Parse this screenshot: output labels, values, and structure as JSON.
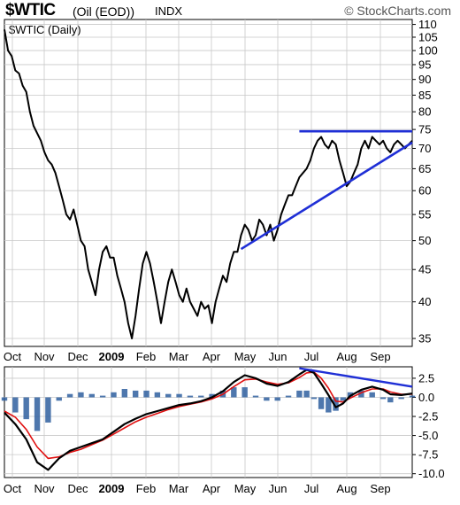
{
  "header": {
    "symbol": "$WTIC",
    "description": "(Oil (EOD))",
    "exchange": "INDX",
    "brand": "© StockCharts.com",
    "subtitle": "$WTIC (Daily)"
  },
  "colors": {
    "price": "#000000",
    "trendline": "#1f2fd6",
    "signal": "#e01010",
    "histogram": "#2f5f9f",
    "grid": "#c8c8c8"
  },
  "chart_data": [
    {
      "type": "line",
      "name": "price-panel",
      "scale": "log",
      "ylim": [
        34,
        112
      ],
      "y_ticks": [
        110,
        105,
        100,
        95,
        90,
        85,
        80,
        75,
        70,
        65,
        60,
        55,
        50,
        45,
        40,
        35
      ],
      "x_ticks": [
        "Oct",
        "Nov",
        "Dec",
        "2009",
        "Feb",
        "Mar",
        "Apr",
        "May",
        "Jun",
        "Jul",
        "Aug",
        "Sep"
      ],
      "series": [
        {
          "values": [
            [
              0,
              108
            ],
            [
              2,
              100
            ],
            [
              4,
              98
            ],
            [
              6,
              93
            ],
            [
              8,
              92
            ],
            [
              10,
              88
            ],
            [
              12,
              86
            ],
            [
              14,
              80
            ],
            [
              16,
              76
            ],
            [
              18,
              74
            ],
            [
              20,
              72
            ],
            [
              22,
              69
            ],
            [
              24,
              67
            ],
            [
              26,
              66
            ],
            [
              28,
              64
            ],
            [
              30,
              61
            ],
            [
              32,
              58
            ],
            [
              34,
              55
            ],
            [
              36,
              54
            ],
            [
              38,
              56
            ],
            [
              40,
              53
            ],
            [
              42,
              50
            ],
            [
              44,
              49
            ],
            [
              46,
              45
            ],
            [
              48,
              43
            ],
            [
              50,
              41
            ],
            [
              52,
              45
            ],
            [
              54,
              48
            ],
            [
              56,
              49
            ],
            [
              58,
              47
            ],
            [
              60,
              47
            ],
            [
              62,
              44
            ],
            [
              64,
              42
            ],
            [
              66,
              40
            ],
            [
              68,
              37
            ],
            [
              70,
              35
            ],
            [
              72,
              38
            ],
            [
              74,
              42
            ],
            [
              76,
              46
            ],
            [
              78,
              48
            ],
            [
              80,
              46
            ],
            [
              82,
              43
            ],
            [
              84,
              40
            ],
            [
              86,
              37
            ],
            [
              88,
              40
            ],
            [
              90,
              43
            ],
            [
              92,
              45
            ],
            [
              94,
              43
            ],
            [
              96,
              41
            ],
            [
              98,
              40
            ],
            [
              100,
              42
            ],
            [
              102,
              40
            ],
            [
              104,
              39
            ],
            [
              106,
              38
            ],
            [
              108,
              40
            ],
            [
              110,
              39
            ],
            [
              112,
              39.5
            ],
            [
              114,
              37
            ],
            [
              116,
              40
            ],
            [
              118,
              42
            ],
            [
              120,
              44
            ],
            [
              122,
              43
            ],
            [
              124,
              46
            ],
            [
              126,
              48
            ],
            [
              128,
              48
            ],
            [
              130,
              51
            ],
            [
              132,
              53
            ],
            [
              134,
              52
            ],
            [
              136,
              50
            ],
            [
              138,
              51
            ],
            [
              140,
              54
            ],
            [
              142,
              53
            ],
            [
              144,
              51
            ],
            [
              146,
              53
            ],
            [
              148,
              50
            ],
            [
              150,
              52
            ],
            [
              152,
              55
            ],
            [
              154,
              57
            ],
            [
              156,
              59
            ],
            [
              158,
              59
            ],
            [
              160,
              61
            ],
            [
              162,
              63
            ],
            [
              164,
              64
            ],
            [
              166,
              65
            ],
            [
              168,
              67
            ],
            [
              170,
              70
            ],
            [
              172,
              72
            ],
            [
              174,
              73
            ],
            [
              176,
              71
            ],
            [
              178,
              70
            ],
            [
              180,
              72
            ],
            [
              182,
              71
            ],
            [
              184,
              67
            ],
            [
              186,
              64
            ],
            [
              188,
              61
            ],
            [
              190,
              62
            ],
            [
              192,
              64
            ],
            [
              194,
              66
            ],
            [
              196,
              70
            ],
            [
              198,
              72
            ],
            [
              200,
              70
            ],
            [
              202,
              73
            ],
            [
              204,
              72
            ],
            [
              206,
              71
            ],
            [
              208,
              72
            ],
            [
              210,
              70
            ],
            [
              212,
              69
            ],
            [
              214,
              71
            ],
            [
              216,
              72
            ],
            [
              218,
              71
            ],
            [
              220,
              70
            ],
            [
              222,
              71
            ],
            [
              224,
              72
            ]
          ]
        }
      ],
      "trendlines": [
        {
          "label": "resistance",
          "from": [
            162,
            74.5
          ],
          "to": [
            224,
            74.5
          ]
        },
        {
          "label": "rising-support",
          "from": [
            130,
            48.5
          ],
          "to": [
            224,
            71.5
          ]
        }
      ]
    },
    {
      "type": "line",
      "name": "ppo-macd-panel",
      "ylim": [
        -10.5,
        4
      ],
      "y_ticks": [
        2.5,
        0.0,
        -2.5,
        -5.0,
        -7.5,
        -10.0
      ],
      "y_tick_labels": [
        "2.5",
        "0.0",
        "-2.5",
        "-5.0",
        "-7.5",
        "-10.0"
      ],
      "x_ticks": [
        "Oct",
        "Nov",
        "Dec",
        "2009",
        "Feb",
        "Mar",
        "Apr",
        "May",
        "Jun",
        "Jul",
        "Aug",
        "Sep"
      ],
      "series": [
        {
          "values": [
            [
              0,
              -2.0
            ],
            [
              6,
              -3.5
            ],
            [
              12,
              -5.5
            ],
            [
              18,
              -8.5
            ],
            [
              24,
              -9.5
            ],
            [
              30,
              -8.0
            ],
            [
              36,
              -7.0
            ],
            [
              42,
              -6.5
            ],
            [
              48,
              -6.0
            ],
            [
              54,
              -5.5
            ],
            [
              60,
              -4.5
            ],
            [
              66,
              -3.5
            ],
            [
              72,
              -2.8
            ],
            [
              78,
              -2.2
            ],
            [
              84,
              -1.8
            ],
            [
              90,
              -1.4
            ],
            [
              96,
              -1.0
            ],
            [
              102,
              -0.8
            ],
            [
              108,
              -0.5
            ],
            [
              114,
              0.0
            ],
            [
              120,
              0.8
            ],
            [
              126,
              2.0
            ],
            [
              132,
              2.9
            ],
            [
              138,
              2.5
            ],
            [
              144,
              1.8
            ],
            [
              150,
              1.5
            ],
            [
              156,
              2.0
            ],
            [
              162,
              3.0
            ],
            [
              166,
              3.6
            ],
            [
              170,
              3.2
            ],
            [
              174,
              1.8
            ],
            [
              178,
              0.3
            ],
            [
              182,
              -1.3
            ],
            [
              186,
              -0.8
            ],
            [
              190,
              0.2
            ],
            [
              196,
              1.0
            ],
            [
              202,
              1.4
            ],
            [
              208,
              1.0
            ],
            [
              212,
              0.4
            ],
            [
              218,
              0.3
            ],
            [
              224,
              0.5
            ]
          ]
        },
        {
          "values": [
            [
              0,
              -1.8
            ],
            [
              6,
              -2.6
            ],
            [
              12,
              -4.2
            ],
            [
              18,
              -6.5
            ],
            [
              24,
              -8.0
            ],
            [
              30,
              -7.8
            ],
            [
              36,
              -7.2
            ],
            [
              42,
              -6.8
            ],
            [
              48,
              -6.2
            ],
            [
              54,
              -5.6
            ],
            [
              60,
              -4.8
            ],
            [
              66,
              -4.0
            ],
            [
              72,
              -3.2
            ],
            [
              78,
              -2.6
            ],
            [
              84,
              -2.1
            ],
            [
              90,
              -1.6
            ],
            [
              96,
              -1.2
            ],
            [
              102,
              -0.9
            ],
            [
              108,
              -0.6
            ],
            [
              114,
              -0.2
            ],
            [
              120,
              0.4
            ],
            [
              126,
              1.4
            ],
            [
              132,
              2.3
            ],
            [
              138,
              2.4
            ],
            [
              144,
              2.0
            ],
            [
              150,
              1.7
            ],
            [
              156,
              1.9
            ],
            [
              162,
              2.6
            ],
            [
              166,
              3.2
            ],
            [
              170,
              3.3
            ],
            [
              174,
              2.5
            ],
            [
              178,
              1.2
            ],
            [
              182,
              -0.5
            ],
            [
              186,
              -0.6
            ],
            [
              190,
              -0.1
            ],
            [
              196,
              0.6
            ],
            [
              202,
              1.1
            ],
            [
              208,
              1.1
            ],
            [
              212,
              0.7
            ],
            [
              218,
              0.4
            ],
            [
              224,
              0.4
            ]
          ]
        }
      ],
      "trendlines": [
        {
          "label": "declining-peaks",
          "from": [
            162,
            3.8
          ],
          "to": [
            224,
            1.4
          ]
        }
      ]
    }
  ]
}
